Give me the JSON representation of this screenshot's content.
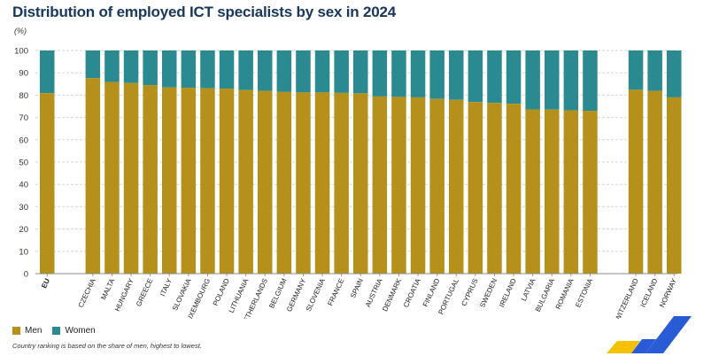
{
  "title": "Distribution of employed ICT specialists by sex in 2024",
  "unit_label": "(%)",
  "legend": {
    "men": "Men",
    "women": "Women"
  },
  "footnote": "Country ranking is based on the share of men, highest to lowest.",
  "colors": {
    "men": "#b5911c",
    "women": "#2a8a8f",
    "title": "#17375e",
    "grid": "#d6d6d6",
    "logo_yellow": "#f6c200",
    "logo_blue": "#2a5bd7"
  },
  "chart_data": {
    "type": "bar",
    "stacked": true,
    "title": "Distribution of employed ICT specialists by sex in 2024",
    "ylabel": "(%)",
    "xlabel": "",
    "ylim": [
      0,
      100
    ],
    "yticks": [
      0,
      10,
      20,
      30,
      40,
      50,
      60,
      70,
      80,
      90,
      100
    ],
    "grid": true,
    "legend_position": "bottom-left",
    "groups": [
      {
        "name": "eu",
        "categories": [
          "EU"
        ]
      },
      {
        "name": "member-states",
        "categories": [
          "CZECHIA",
          "MALTA",
          "HUNGARY",
          "GREECE",
          "ITALY",
          "SLOVAKIA",
          "LUXEMBOURG",
          "POLAND",
          "LITHUANIA",
          "NETHERLANDS",
          "BELGIUM",
          "GERMANY",
          "SLOVENIA",
          "FRANCE",
          "SPAIN",
          "AUSTRIA",
          "DENMARK",
          "CROATIA",
          "FINLAND",
          "PORTUGAL",
          "CYPRUS",
          "SWEDEN",
          "IRELAND",
          "LATVIA",
          "BULGARIA",
          "ROMANIA",
          "ESTONIA"
        ]
      },
      {
        "name": "efta",
        "categories": [
          "SWITZERLAND",
          "ICELAND",
          "NORWAY"
        ]
      }
    ],
    "categories": [
      "EU",
      "CZECHIA",
      "MALTA",
      "HUNGARY",
      "GREECE",
      "ITALY",
      "SLOVAKIA",
      "LUXEMBOURG",
      "POLAND",
      "LITHUANIA",
      "NETHERLANDS",
      "BELGIUM",
      "GERMANY",
      "SLOVENIA",
      "FRANCE",
      "SPAIN",
      "AUSTRIA",
      "DENMARK",
      "CROATIA",
      "FINLAND",
      "PORTUGAL",
      "CYPRUS",
      "SWEDEN",
      "IRELAND",
      "LATVIA",
      "BULGARIA",
      "ROMANIA",
      "ESTONIA",
      "SWITZERLAND",
      "ICELAND",
      "NORWAY"
    ],
    "series": [
      {
        "name": "Men",
        "values": [
          80.9,
          87.6,
          85.9,
          85.4,
          84.5,
          83.4,
          83.3,
          83.1,
          82.9,
          82.3,
          81.9,
          81.4,
          81.2,
          81.2,
          81.0,
          80.8,
          79.4,
          79.2,
          79.0,
          78.3,
          77.9,
          76.9,
          76.5,
          76.1,
          73.6,
          73.5,
          73.2,
          73.0,
          82.4,
          81.9,
          79.0
        ]
      },
      {
        "name": "Women",
        "values": [
          19.1,
          12.4,
          14.1,
          14.6,
          15.5,
          16.6,
          16.7,
          16.9,
          17.1,
          17.7,
          18.1,
          18.6,
          18.8,
          18.8,
          19.0,
          19.2,
          20.6,
          20.8,
          21.0,
          21.7,
          22.1,
          23.1,
          23.5,
          23.9,
          26.4,
          26.5,
          26.8,
          27.0,
          17.6,
          18.1,
          21.0
        ]
      }
    ]
  }
}
